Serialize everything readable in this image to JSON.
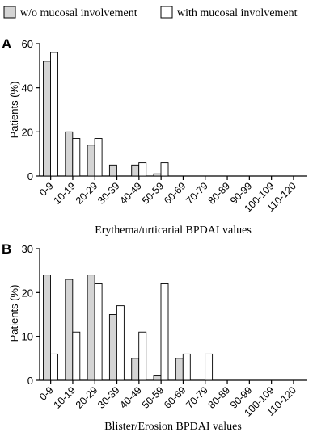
{
  "legend": {
    "items": [
      {
        "label": "w/o mucosal involvement",
        "color": "#d4d4d4"
      },
      {
        "label": "with mucosal involvement",
        "color": "#ffffff"
      }
    ]
  },
  "chart_data": [
    {
      "type": "bar",
      "panel_label": "A",
      "title": "",
      "xlabel": "Erythema/urticarial BPDAI values",
      "ylabel": "Patients (%)",
      "ylim": [
        0,
        60
      ],
      "yticks": [
        "0",
        "20",
        "40",
        "60"
      ],
      "categories": [
        "0-9",
        "10-19",
        "20-29",
        "30-39",
        "40-49",
        "50-59",
        "60-69",
        "70-79",
        "80-89",
        "90-99",
        "100-109",
        "110-120"
      ],
      "series": [
        {
          "name": "w/o mucosal involvement",
          "color": "#d4d4d4",
          "values": [
            52,
            20,
            14,
            5,
            5,
            1,
            0,
            0,
            0,
            0,
            0,
            0
          ]
        },
        {
          "name": "with mucosal involvement",
          "color": "#ffffff",
          "values": [
            56,
            17,
            17,
            0,
            6,
            6,
            0,
            0,
            0,
            0,
            0,
            0
          ]
        }
      ]
    },
    {
      "type": "bar",
      "panel_label": "B",
      "title": "",
      "xlabel": "Blister/Erosion BPDAI values",
      "ylabel": "Patients (%)",
      "ylim": [
        0,
        30
      ],
      "yticks": [
        "0",
        "10",
        "20",
        "30"
      ],
      "categories": [
        "0-9",
        "10-19",
        "20-29",
        "30-39",
        "40-49",
        "50-59",
        "60-69",
        "70-79",
        "80-89",
        "90-99",
        "100-109",
        "110-120"
      ],
      "series": [
        {
          "name": "w/o mucosal involvement",
          "color": "#d4d4d4",
          "values": [
            24,
            23,
            24,
            15,
            5,
            1,
            5,
            0,
            0,
            0,
            0,
            0
          ]
        },
        {
          "name": "with mucosal involvement",
          "color": "#ffffff",
          "values": [
            6,
            11,
            22,
            17,
            11,
            22,
            6,
            6,
            0,
            0,
            0,
            0
          ]
        }
      ]
    }
  ]
}
